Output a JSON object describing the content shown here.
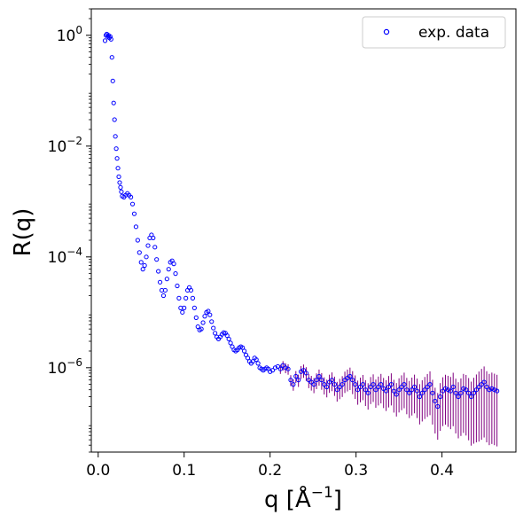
{
  "chart_data": {
    "type": "scatter",
    "xlabel": "q [Å",
    "xlabel_sup": "−1",
    "xlabel_end": "]",
    "ylabel": "R(q)",
    "xlim": [
      -0.008,
      0.486
    ],
    "ylim": [
      3e-08,
      3
    ],
    "yscale": "log",
    "grid": false,
    "legend_position": "top-right",
    "x_ticks": [
      {
        "value": 0.0,
        "label": "0.0"
      },
      {
        "value": 0.1,
        "label": "0.1"
      },
      {
        "value": 0.2,
        "label": "0.2"
      },
      {
        "value": 0.3,
        "label": "0.3"
      },
      {
        "value": 0.4,
        "label": "0.4"
      }
    ],
    "y_ticks": [
      {
        "value": 1,
        "base": "10",
        "exp": "0"
      },
      {
        "value": 0.01,
        "base": "10",
        "exp": "−2"
      },
      {
        "value": 0.0001,
        "base": "10",
        "exp": "−4"
      },
      {
        "value": 1e-06,
        "base": "10",
        "exp": "−6"
      }
    ],
    "series": [
      {
        "name": "exp. data",
        "marker": "open-circle",
        "marker_color": "#0000ff",
        "errorbar_color": "#800080",
        "points": [
          [
            0.008,
            0.8
          ],
          [
            0.009,
            1.0
          ],
          [
            0.01,
            1.05
          ],
          [
            0.011,
            0.95
          ],
          [
            0.012,
            1.0
          ],
          [
            0.013,
            0.9
          ],
          [
            0.014,
            0.95
          ],
          [
            0.015,
            0.85
          ],
          [
            0.016,
            0.4
          ],
          [
            0.017,
            0.15
          ],
          [
            0.018,
            0.06
          ],
          [
            0.019,
            0.03
          ],
          [
            0.02,
            0.015
          ],
          [
            0.021,
            0.009
          ],
          [
            0.022,
            0.006
          ],
          [
            0.023,
            0.004
          ],
          [
            0.024,
            0.0028
          ],
          [
            0.025,
            0.0022
          ],
          [
            0.026,
            0.0018
          ],
          [
            0.027,
            0.0015
          ],
          [
            0.028,
            0.00125
          ],
          [
            0.03,
            0.0012
          ],
          [
            0.032,
            0.0013
          ],
          [
            0.034,
            0.0014
          ],
          [
            0.036,
            0.0013
          ],
          [
            0.038,
            0.0012
          ],
          [
            0.04,
            0.0009
          ],
          [
            0.042,
            0.0006
          ],
          [
            0.044,
            0.00035
          ],
          [
            0.046,
            0.0002
          ],
          [
            0.048,
            0.00012
          ],
          [
            0.05,
            8e-05
          ],
          [
            0.052,
            6e-05
          ],
          [
            0.054,
            7e-05
          ],
          [
            0.056,
            0.0001
          ],
          [
            0.058,
            0.00016
          ],
          [
            0.06,
            0.00022
          ],
          [
            0.062,
            0.00025
          ],
          [
            0.064,
            0.00022
          ],
          [
            0.066,
            0.00015
          ],
          [
            0.068,
            9e-05
          ],
          [
            0.07,
            5.5e-05
          ],
          [
            0.072,
            3.5e-05
          ],
          [
            0.074,
            2.5e-05
          ],
          [
            0.076,
            2e-05
          ],
          [
            0.078,
            2.5e-05
          ],
          [
            0.08,
            4e-05
          ],
          [
            0.082,
            6e-05
          ],
          [
            0.084,
            8e-05
          ],
          [
            0.086,
            8.5e-05
          ],
          [
            0.088,
            7.5e-05
          ],
          [
            0.09,
            5e-05
          ],
          [
            0.092,
            3e-05
          ],
          [
            0.094,
            1.8e-05
          ],
          [
            0.096,
            1.2e-05
          ],
          [
            0.098,
            1e-05
          ],
          [
            0.1,
            1.2e-05
          ],
          [
            0.102,
            1.8e-05
          ],
          [
            0.104,
            2.5e-05
          ],
          [
            0.106,
            2.8e-05
          ],
          [
            0.108,
            2.5e-05
          ],
          [
            0.11,
            1.8e-05
          ],
          [
            0.112,
            1.2e-05
          ],
          [
            0.114,
            8e-06
          ],
          [
            0.116,
            5.5e-06
          ],
          [
            0.118,
            4.8e-06
          ],
          [
            0.12,
            5e-06
          ],
          [
            0.122,
            6.5e-06
          ],
          [
            0.124,
            8.5e-06
          ],
          [
            0.126,
            1e-05
          ],
          [
            0.128,
            1.05e-05
          ],
          [
            0.13,
            9e-06
          ],
          [
            0.132,
            6.8e-06
          ],
          [
            0.134,
            5.2e-06
          ],
          [
            0.136,
            4.2e-06
          ],
          [
            0.138,
            3.6e-06
          ],
          [
            0.14,
            3.3e-06
          ],
          [
            0.142,
            3.6e-06
          ],
          [
            0.144,
            4e-06
          ],
          [
            0.146,
            4.3e-06
          ],
          [
            0.148,
            4.2e-06
          ],
          [
            0.15,
            3.8e-06
          ],
          [
            0.152,
            3.3e-06
          ],
          [
            0.154,
            2.8e-06
          ],
          [
            0.156,
            2.4e-06
          ],
          [
            0.158,
            2.1e-06
          ],
          [
            0.16,
            2e-06
          ],
          [
            0.162,
            2.1e-06
          ],
          [
            0.164,
            2.3e-06
          ],
          [
            0.166,
            2.4e-06
          ],
          [
            0.168,
            2.3e-06
          ],
          [
            0.17,
            2e-06
          ],
          [
            0.172,
            1.7e-06
          ],
          [
            0.174,
            1.5e-06
          ],
          [
            0.176,
            1.3e-06
          ],
          [
            0.178,
            1.2e-06
          ],
          [
            0.18,
            1.3e-06
          ],
          [
            0.182,
            1.5e-06
          ],
          [
            0.184,
            1.4e-06
          ],
          [
            0.186,
            1.2e-06
          ],
          [
            0.188,
            1e-06
          ],
          [
            0.19,
            9.5e-07
          ],
          [
            0.192,
            9e-07
          ],
          [
            0.194,
            9.5e-07
          ],
          [
            0.196,
            1e-06
          ],
          [
            0.198,
            9.5e-07
          ],
          [
            0.2,
            8.5e-07
          ],
          [
            0.203,
            9e-07
          ],
          [
            0.206,
            1e-06
          ],
          [
            0.209,
            1.05e-06
          ],
          [
            0.212,
            9.5e-07
          ],
          [
            0.215,
            1.1e-06
          ],
          [
            0.218,
            1e-06
          ],
          [
            0.221,
            9.5e-07
          ],
          [
            0.224,
            6e-07
          ],
          [
            0.227,
            5e-07
          ],
          [
            0.23,
            7e-07
          ],
          [
            0.233,
            6e-07
          ],
          [
            0.236,
            8.5e-07
          ],
          [
            0.239,
            9e-07
          ],
          [
            0.242,
            8e-07
          ],
          [
            0.245,
            6e-07
          ],
          [
            0.248,
            5.5e-07
          ],
          [
            0.251,
            5e-07
          ],
          [
            0.254,
            6e-07
          ],
          [
            0.257,
            7e-07
          ],
          [
            0.26,
            6e-07
          ],
          [
            0.263,
            5e-07
          ],
          [
            0.266,
            4.5e-07
          ],
          [
            0.269,
            5.5e-07
          ],
          [
            0.272,
            6e-07
          ],
          [
            0.275,
            5e-07
          ],
          [
            0.278,
            4e-07
          ],
          [
            0.281,
            4.5e-07
          ],
          [
            0.284,
            5e-07
          ],
          [
            0.287,
            6e-07
          ],
          [
            0.29,
            6.5e-07
          ],
          [
            0.293,
            7e-07
          ],
          [
            0.296,
            6e-07
          ],
          [
            0.299,
            5e-07
          ],
          [
            0.302,
            4e-07
          ],
          [
            0.305,
            4.5e-07
          ],
          [
            0.308,
            5e-07
          ],
          [
            0.311,
            4e-07
          ],
          [
            0.314,
            3.5e-07
          ],
          [
            0.317,
            4.5e-07
          ],
          [
            0.32,
            5e-07
          ],
          [
            0.323,
            4e-07
          ],
          [
            0.326,
            4.5e-07
          ],
          [
            0.329,
            5e-07
          ],
          [
            0.332,
            4.2e-07
          ],
          [
            0.335,
            3.8e-07
          ],
          [
            0.338,
            4.5e-07
          ],
          [
            0.341,
            5e-07
          ],
          [
            0.344,
            3.8e-07
          ],
          [
            0.347,
            3.3e-07
          ],
          [
            0.35,
            4e-07
          ],
          [
            0.353,
            4.5e-07
          ],
          [
            0.356,
            5e-07
          ],
          [
            0.359,
            4e-07
          ],
          [
            0.362,
            3.5e-07
          ],
          [
            0.365,
            4e-07
          ],
          [
            0.368,
            4.5e-07
          ],
          [
            0.371,
            3.8e-07
          ],
          [
            0.374,
            3e-07
          ],
          [
            0.377,
            3.5e-07
          ],
          [
            0.38,
            4e-07
          ],
          [
            0.383,
            4.5e-07
          ],
          [
            0.386,
            5e-07
          ],
          [
            0.389,
            3.5e-07
          ],
          [
            0.392,
            2.5e-07
          ],
          [
            0.395,
            2e-07
          ],
          [
            0.398,
            3e-07
          ],
          [
            0.401,
            3.8e-07
          ],
          [
            0.404,
            4.2e-07
          ],
          [
            0.407,
            4e-07
          ],
          [
            0.41,
            3.8e-07
          ],
          [
            0.413,
            4.5e-07
          ],
          [
            0.416,
            3.5e-07
          ],
          [
            0.419,
            3e-07
          ],
          [
            0.422,
            3.5e-07
          ],
          [
            0.425,
            4.2e-07
          ],
          [
            0.428,
            4e-07
          ],
          [
            0.431,
            3.5e-07
          ],
          [
            0.434,
            3e-07
          ],
          [
            0.437,
            3.5e-07
          ],
          [
            0.44,
            4e-07
          ],
          [
            0.443,
            4.5e-07
          ],
          [
            0.446,
            5e-07
          ],
          [
            0.449,
            5.5e-07
          ],
          [
            0.452,
            4.5e-07
          ],
          [
            0.455,
            4e-07
          ],
          [
            0.458,
            4.2e-07
          ],
          [
            0.461,
            4e-07
          ],
          [
            0.464,
            3.8e-07
          ]
        ]
      }
    ]
  }
}
